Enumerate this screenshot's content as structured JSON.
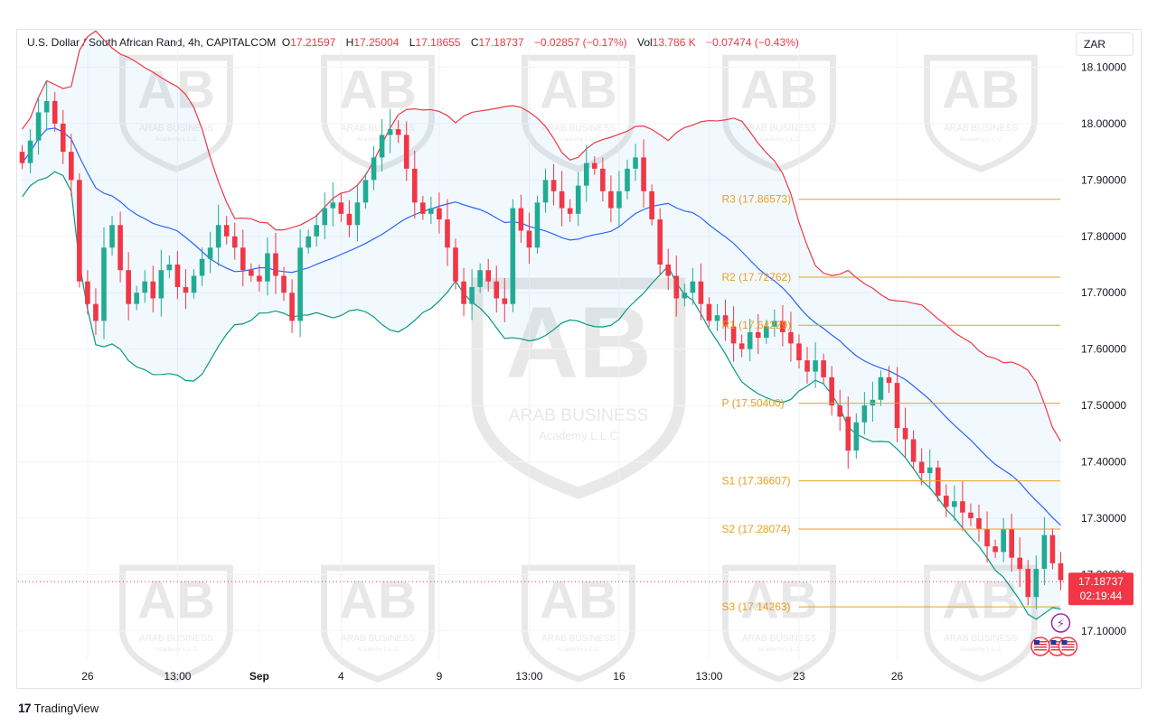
{
  "legend": {
    "symbol": "U.S. Dollar / South African Rand, 4h, CAPITALCOM",
    "o_label": "O",
    "o_value": "17.21597",
    "h_label": "H",
    "h_value": "17.25004",
    "l_label": "L",
    "l_value": "17.18655",
    "c_label": "C",
    "c_value": "17.18737",
    "change": "−0.02857 (−0.17%)",
    "vol_label": "Vol",
    "vol_value": "13.786 K",
    "vol_change": "−0.07474 (−0.43%)"
  },
  "currency": "ZAR",
  "footer": {
    "brand": "TradingView"
  },
  "watermark": {
    "name": "ARAB BUSINESS",
    "sub": "Academy L.L.C"
  },
  "colors": {
    "up": "#22ab94",
    "down": "#f23645",
    "basis": "#2962ff",
    "upper": "#f23645",
    "lower": "#089981",
    "pivot": "#e8a01f",
    "fill": "#2196f3"
  },
  "chart_data": {
    "type": "candlestick",
    "ylim": [
      17.05,
      18.12
    ],
    "y_ticks": [
      "18.10000",
      "18.00000",
      "17.90000",
      "17.80000",
      "17.70000",
      "17.60000",
      "17.50000",
      "17.40000",
      "17.30000",
      "17.20000",
      "17.10000"
    ],
    "x_ticks": [
      {
        "label": "26",
        "bar": 8,
        "bold": false
      },
      {
        "label": "13:00",
        "bar": 19,
        "bold": false
      },
      {
        "label": "Sep",
        "bar": 29,
        "bold": true
      },
      {
        "label": "4",
        "bar": 39,
        "bold": false
      },
      {
        "label": "9",
        "bar": 51,
        "bold": false
      },
      {
        "label": "13:00",
        "bar": 62,
        "bold": false
      },
      {
        "label": "16",
        "bar": 73,
        "bold": false
      },
      {
        "label": "13:00",
        "bar": 84,
        "bold": false
      },
      {
        "label": "23",
        "bar": 95,
        "bold": false
      },
      {
        "label": "26",
        "bar": 107,
        "bold": false
      }
    ],
    "last_price": {
      "value": 17.18737,
      "label": "17.18737",
      "countdown": "02:19:44"
    },
    "pivots": [
      {
        "name": "R3",
        "value": 17.86573,
        "label": "R3 (17.86573)"
      },
      {
        "name": "R2",
        "value": 17.72762,
        "label": "R2 (17.72762)"
      },
      {
        "name": "R1",
        "value": 17.64229,
        "label": "R1 (17.64229)"
      },
      {
        "name": "P",
        "value": 17.504,
        "label": "P (17.50400)"
      },
      {
        "name": "S1",
        "value": 17.36607,
        "label": "S1 (17.36607)"
      },
      {
        "name": "S2",
        "value": 17.28074,
        "label": "S2 (17.28074)"
      },
      {
        "name": "S3",
        "value": 17.14263,
        "label": "S3 (17.14263)"
      }
    ],
    "pivot_start_bar": 85,
    "closes": [
      17.93,
      17.97,
      18.02,
      18.04,
      18.0,
      17.95,
      17.9,
      17.72,
      17.68,
      17.65,
      17.78,
      17.82,
      17.74,
      17.68,
      17.7,
      17.72,
      17.69,
      17.74,
      17.75,
      17.71,
      17.7,
      17.73,
      17.76,
      17.78,
      17.82,
      17.8,
      17.78,
      17.74,
      17.73,
      17.72,
      17.77,
      17.73,
      17.7,
      17.65,
      17.78,
      17.8,
      17.82,
      17.85,
      17.86,
      17.84,
      17.82,
      17.86,
      17.9,
      17.94,
      17.98,
      17.99,
      17.98,
      17.92,
      17.86,
      17.84,
      17.85,
      17.83,
      17.78,
      17.72,
      17.68,
      17.71,
      17.74,
      17.72,
      17.69,
      17.68,
      17.85,
      17.81,
      17.78,
      17.86,
      17.9,
      17.88,
      17.85,
      17.84,
      17.89,
      17.93,
      17.92,
      17.88,
      17.85,
      17.88,
      17.92,
      17.94,
      17.88,
      17.83,
      17.75,
      17.73,
      17.69,
      17.7,
      17.72,
      17.68,
      17.65,
      17.66,
      17.64,
      17.61,
      17.6,
      17.63,
      17.62,
      17.64,
      17.65,
      17.63,
      17.61,
      17.58,
      17.56,
      17.58,
      17.55,
      17.5,
      17.48,
      17.42,
      17.47,
      17.5,
      17.51,
      17.55,
      17.54,
      17.46,
      17.44,
      17.4,
      17.38,
      17.39,
      17.34,
      17.32,
      17.33,
      17.31,
      17.3,
      17.28,
      17.25,
      17.24,
      17.28,
      17.23,
      17.21,
      17.16,
      17.21,
      17.27,
      17.22,
      17.19
    ]
  }
}
